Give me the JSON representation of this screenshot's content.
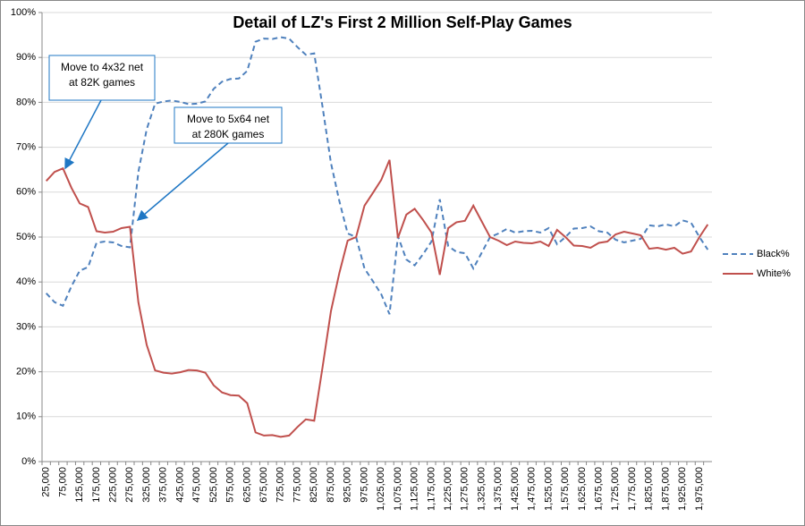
{
  "chart_data": {
    "type": "line",
    "title": "Detail of LZ's First 2 Million Self-Play Games",
    "categories": [
      "25,000",
      null,
      "75,000",
      null,
      "125,000",
      null,
      "175,000",
      null,
      "225,000",
      null,
      "275,000",
      null,
      "325,000",
      null,
      "375,000",
      null,
      "425,000",
      null,
      "475,000",
      null,
      "525,000",
      null,
      "575,000",
      null,
      "625,000",
      null,
      "675,000",
      null,
      "725,000",
      null,
      "775,000",
      null,
      "825,000",
      null,
      "875,000",
      null,
      "925,000",
      null,
      "975,000",
      null,
      "1,025,000",
      null,
      "1,075,000",
      null,
      "1,125,000",
      null,
      "1,175,000",
      null,
      "1,225,000",
      null,
      "1,275,000",
      null,
      "1,325,000",
      null,
      "1,375,000",
      null,
      "1,425,000",
      null,
      "1,475,000",
      null,
      "1,525,000",
      null,
      "1,575,000",
      null,
      "1,625,000",
      null,
      "1,675,000",
      null,
      "1,725,000",
      null,
      "1,775,000",
      null,
      "1,825,000",
      null,
      "1,875,000",
      null,
      "1,925,000",
      null,
      "1,975,000",
      null
    ],
    "series": [
      {
        "name": "Black%",
        "color": "#4f81bd",
        "dash": true,
        "values": [
          37.5,
          35.5,
          34.7,
          39,
          42.5,
          43.3,
          48.7,
          49,
          48.8,
          48,
          47.7,
          64.5,
          74,
          79.7,
          80.2,
          80.4,
          80.1,
          79.6,
          79.7,
          80.2,
          83,
          84.6,
          85.2,
          85.3,
          87,
          93.5,
          94.2,
          94.1,
          94.5,
          94.2,
          92.3,
          90.6,
          90.9,
          79,
          66.5,
          58,
          50.8,
          50,
          43,
          40.2,
          37.3,
          32.8,
          50.2,
          45,
          43.7,
          46.2,
          49,
          58.4,
          48,
          46.7,
          46.4,
          43,
          46.5,
          50,
          50.8,
          51.8,
          51,
          51.3,
          51.4,
          51,
          52,
          48.4,
          50,
          51.9,
          52,
          52.4,
          51.3,
          51,
          49.4,
          48.8,
          49.2,
          49.6,
          52.6,
          52.4,
          52.8,
          52.4,
          53.7,
          53.2,
          50,
          47.2
        ]
      },
      {
        "name": "White%",
        "color": "#c0504d",
        "dash": false,
        "values": [
          62.5,
          64.5,
          65.3,
          61,
          57.5,
          56.7,
          51.3,
          51,
          51.2,
          52,
          52.3,
          35.5,
          26,
          20.3,
          19.8,
          19.6,
          19.9,
          20.4,
          20.3,
          19.8,
          17,
          15.4,
          14.8,
          14.7,
          13,
          6.5,
          5.8,
          5.9,
          5.5,
          5.8,
          7.7,
          9.4,
          9.1,
          21,
          33.5,
          42,
          49.2,
          50,
          57,
          59.8,
          62.7,
          67.2,
          49.8,
          55,
          56.3,
          53.8,
          51,
          41.6,
          52,
          53.3,
          53.6,
          57,
          53.5,
          50,
          49.2,
          48.2,
          49,
          48.7,
          48.6,
          49,
          48,
          51.6,
          50,
          48.1,
          48,
          47.6,
          48.7,
          49,
          50.6,
          51.2,
          50.8,
          50.4,
          47.4,
          47.6,
          47.2,
          47.6,
          46.3,
          46.8,
          50,
          52.8
        ]
      }
    ],
    "ylim": [
      0,
      100
    ],
    "yticks": [
      {
        "value": 0,
        "label": "0%"
      },
      {
        "value": 10,
        "label": "10%"
      },
      {
        "value": 20,
        "label": "20%"
      },
      {
        "value": 30,
        "label": "30%"
      },
      {
        "value": 40,
        "label": "40%"
      },
      {
        "value": 50,
        "label": "50%"
      },
      {
        "value": 60,
        "label": "60%"
      },
      {
        "value": 70,
        "label": "70%"
      },
      {
        "value": 80,
        "label": "80%"
      },
      {
        "value": 90,
        "label": "90%"
      },
      {
        "value": 100,
        "label": "100%"
      }
    ],
    "grid": true,
    "legend": "right",
    "annotations": [
      {
        "lines": [
          "Move to 4x32 net",
          "at 82K games"
        ]
      },
      {
        "lines": [
          "Move to 5x64 net",
          "at 280K games"
        ]
      }
    ]
  }
}
